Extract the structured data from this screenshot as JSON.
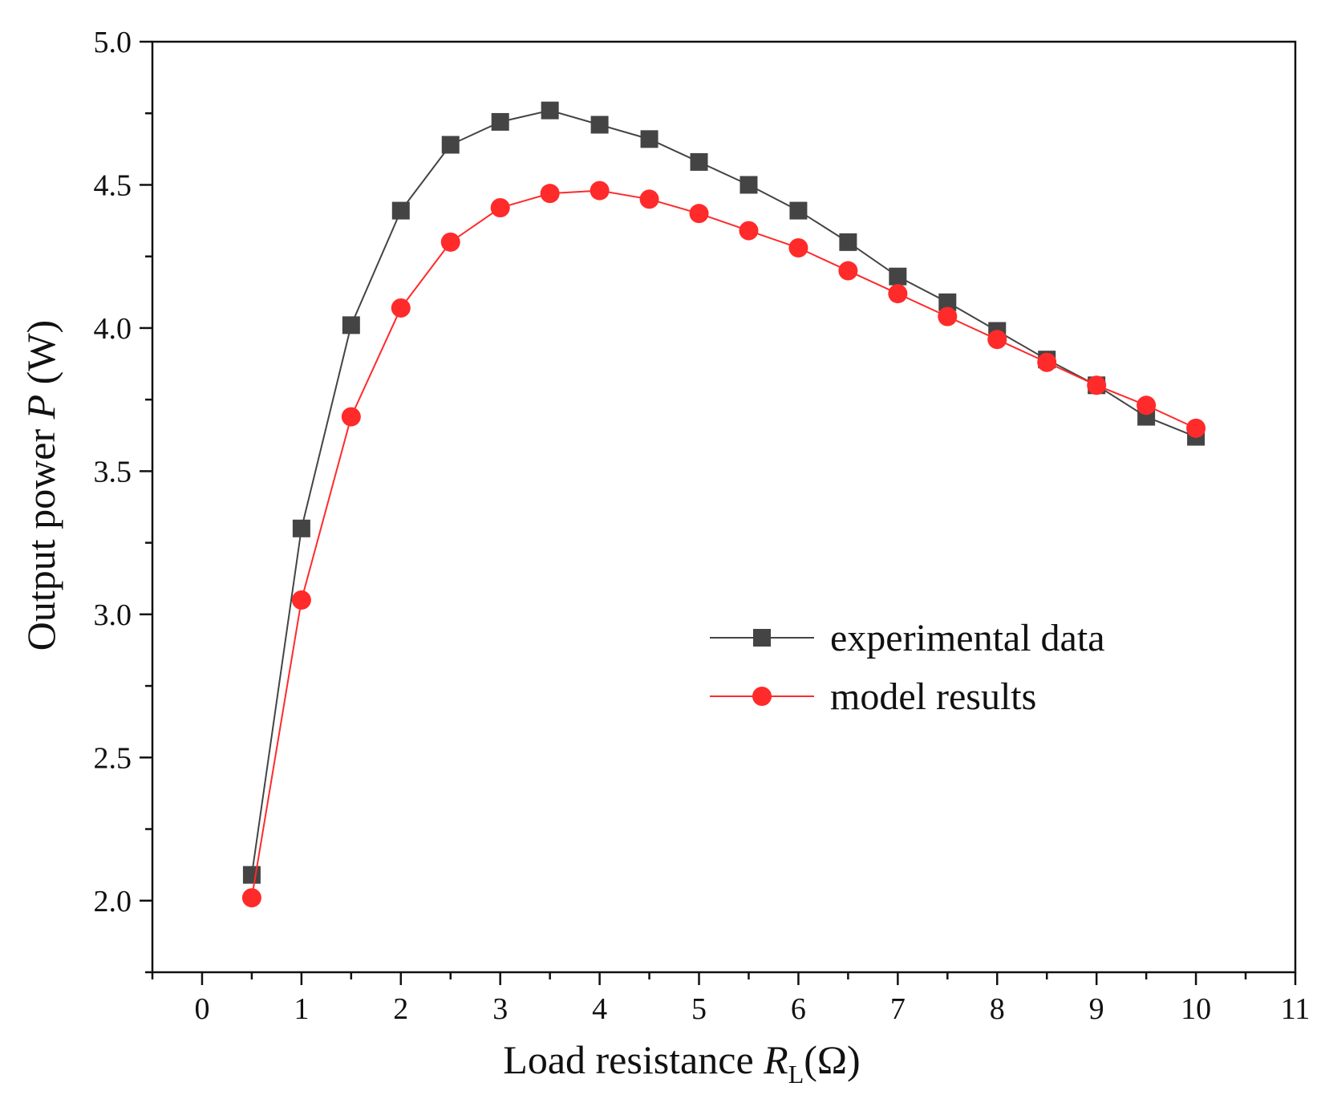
{
  "chart_data": {
    "type": "line",
    "xlabel": {
      "main": "Load resistance ",
      "symbol": "R",
      "subscript": "L",
      "unit": "(Ω)"
    },
    "ylabel": {
      "main": "Output power ",
      "symbol": "P",
      "unit": " (W)"
    },
    "xlim": [
      -0.5,
      11
    ],
    "ylim": [
      1.75,
      5.0
    ],
    "xticks": [
      0,
      1,
      2,
      3,
      4,
      5,
      6,
      7,
      8,
      9,
      10,
      11
    ],
    "yticks": [
      2.0,
      2.5,
      3.0,
      3.5,
      4.0,
      4.5,
      5.0
    ],
    "ytick_labels": [
      "2.0",
      "2.5",
      "3.0",
      "3.5",
      "4.0",
      "4.5",
      "5.0"
    ],
    "grid": false,
    "legend_position": "center-right",
    "x": [
      0.5,
      1.0,
      1.5,
      2.0,
      2.5,
      3.0,
      3.5,
      4.0,
      4.5,
      5.0,
      5.5,
      6.0,
      6.5,
      7.0,
      7.5,
      8.0,
      8.5,
      9.0,
      9.5,
      10.0
    ],
    "series": [
      {
        "name": "experimental data",
        "marker": "square",
        "color": "#444444",
        "values": [
          2.09,
          3.3,
          4.01,
          4.41,
          4.64,
          4.72,
          4.76,
          4.71,
          4.66,
          4.58,
          4.5,
          4.41,
          4.3,
          4.18,
          4.09,
          3.99,
          3.89,
          3.8,
          3.69,
          3.62
        ]
      },
      {
        "name": "model results",
        "marker": "circle",
        "color": "#ff2a2a",
        "values": [
          2.01,
          3.05,
          3.69,
          4.07,
          4.3,
          4.42,
          4.47,
          4.48,
          4.45,
          4.4,
          4.34,
          4.28,
          4.2,
          4.12,
          4.04,
          3.96,
          3.88,
          3.8,
          3.73,
          3.65
        ]
      }
    ]
  }
}
